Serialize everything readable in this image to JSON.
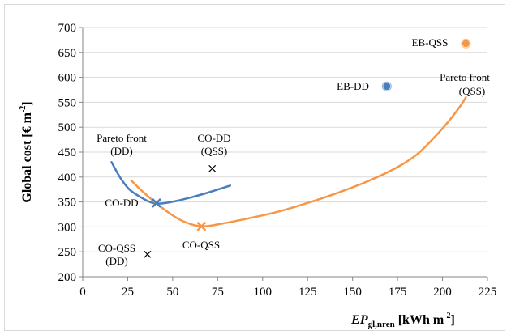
{
  "chart_data": {
    "type": "line",
    "xlabel": {
      "main": "EP",
      "sub": "gl,nren",
      "unit_pre": " [kWh m",
      "unit_sup": "-2",
      "unit_post": "]"
    },
    "ylabel": {
      "main": "Global  cost [€ m",
      "sup": "-2",
      "post": "]"
    },
    "xlim": [
      0,
      225
    ],
    "ylim": [
      200,
      700
    ],
    "x_ticks": [
      "0",
      "25",
      "50",
      "75",
      "100",
      "125",
      "150",
      "175",
      "200",
      "225"
    ],
    "y_ticks": [
      "200",
      "250",
      "300",
      "350",
      "400",
      "450",
      "500",
      "550",
      "600",
      "650",
      "700"
    ],
    "grid": "horizontal",
    "colors": {
      "blue": "#4a7ebb",
      "orange": "#f79646",
      "grid": "#d9d9d9",
      "axis": "#868686"
    },
    "series": [
      {
        "name": "Pareto front (DD)",
        "color": "#4a7ebb",
        "x": [
          16,
          21,
          26,
          32,
          38,
          44,
          52,
          60,
          68,
          76,
          82
        ],
        "y": [
          430,
          398,
          375,
          360,
          349,
          347,
          352,
          359,
          367,
          376,
          383
        ]
      },
      {
        "name": "Pareto front (QSS)",
        "color": "#f79646",
        "x": [
          27,
          33,
          40,
          48,
          56,
          66,
          78,
          92,
          108,
          125,
          143,
          160,
          175,
          186,
          195,
          203,
          210,
          213
        ],
        "y": [
          393,
          372,
          350,
          328,
          311,
          301,
          307,
          317,
          330,
          348,
          370,
          394,
          420,
          446,
          478,
          510,
          543,
          560
        ]
      }
    ],
    "points": [
      {
        "label": "EB-QSS",
        "x": 213,
        "y": 668,
        "marker": "circle",
        "color": "#f79646"
      },
      {
        "label": "EB-DD",
        "x": 169,
        "y": 582,
        "marker": "circle",
        "color": "#4a7ebb"
      },
      {
        "label": "CO-DD",
        "x": 41,
        "y": 348,
        "marker": "x-bold",
        "color": "#4a7ebb"
      },
      {
        "label": "CO-QSS",
        "x": 66,
        "y": 301,
        "marker": "x-bold",
        "color": "#f79646"
      },
      {
        "label": "CO-DD (QSS)",
        "x": 72,
        "y": 417,
        "marker": "x",
        "color": "#000000"
      },
      {
        "label": "CO-QSS (DD)",
        "x": 36,
        "y": 245,
        "marker": "x",
        "color": "#000000"
      }
    ],
    "annotations": {
      "pareto_dd": [
        "Pareto front",
        "(DD)"
      ],
      "pareto_qss": [
        "Pareto front",
        "(QSS)"
      ],
      "eb_qss": "EB-QSS",
      "eb_dd": "EB-DD",
      "co_dd": "CO-DD",
      "co_qss": "CO-QSS",
      "co_dd_qss": [
        "CO-DD",
        "(QSS)"
      ],
      "co_qss_dd": [
        "CO-QSS",
        "(DD)"
      ]
    }
  }
}
